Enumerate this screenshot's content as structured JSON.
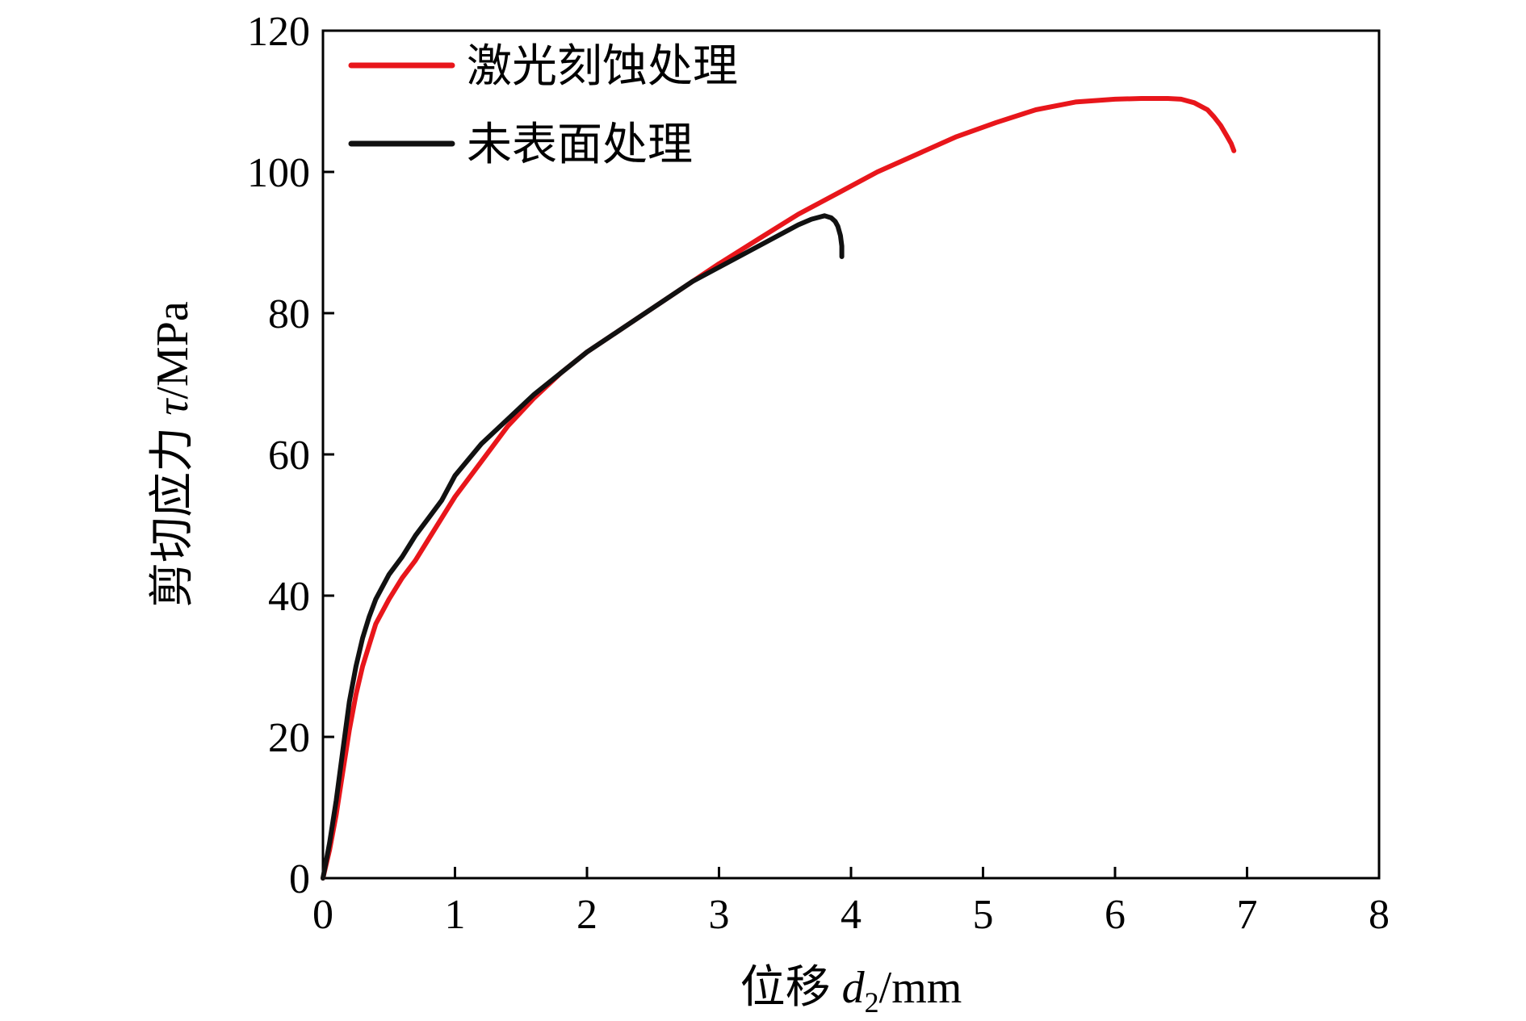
{
  "chart_data": {
    "type": "line",
    "xlabel": {
      "prefix": "位移 ",
      "var": "d",
      "sub": "2",
      "unit": "/mm"
    },
    "ylabel": {
      "prefix": "剪切应力 ",
      "var": "τ",
      "unit": "/MPa"
    },
    "xlim": [
      0,
      8
    ],
    "ylim": [
      0,
      120
    ],
    "xticks": [
      0,
      1,
      2,
      3,
      4,
      5,
      6,
      7,
      8
    ],
    "yticks": [
      0,
      20,
      40,
      60,
      80,
      100,
      120
    ],
    "grid": false,
    "legend_position": "top-left",
    "series": [
      {
        "name": "激光刻蚀处理",
        "color": "#e8161b",
        "x": [
          0,
          0.05,
          0.1,
          0.15,
          0.2,
          0.25,
          0.3,
          0.35,
          0.4,
          0.5,
          0.6,
          0.7,
          0.8,
          0.9,
          1.0,
          1.2,
          1.4,
          1.6,
          1.8,
          2.0,
          2.2,
          2.4,
          2.6,
          2.8,
          3.0,
          3.3,
          3.6,
          3.9,
          4.2,
          4.5,
          4.8,
          5.1,
          5.4,
          5.7,
          6.0,
          6.2,
          6.4,
          6.5,
          6.6,
          6.7,
          6.75,
          6.8,
          6.85,
          6.88,
          6.9
        ],
        "y": [
          0,
          4,
          9,
          15,
          21,
          26,
          30,
          33,
          36,
          39.5,
          42.5,
          45,
          48,
          51,
          54,
          59,
          64,
          68,
          71.5,
          74.5,
          77,
          79.5,
          82,
          84.5,
          87,
          90.5,
          94,
          97,
          100,
          102.5,
          105,
          107,
          108.8,
          109.9,
          110.3,
          110.4,
          110.4,
          110.3,
          109.8,
          108.8,
          107.8,
          106.6,
          105,
          104,
          103
        ]
      },
      {
        "name": "未表面处理",
        "color": "#111111",
        "x": [
          0,
          0.05,
          0.1,
          0.15,
          0.2,
          0.25,
          0.3,
          0.35,
          0.4,
          0.5,
          0.6,
          0.7,
          0.8,
          0.9,
          1.0,
          1.2,
          1.4,
          1.6,
          1.8,
          2.0,
          2.2,
          2.4,
          2.6,
          2.8,
          3.0,
          3.2,
          3.4,
          3.6,
          3.7,
          3.8,
          3.85,
          3.88,
          3.9,
          3.92,
          3.93,
          3.93,
          3.93
        ],
        "y": [
          0,
          5,
          11,
          18,
          25,
          30,
          34,
          37,
          39.5,
          43,
          45.5,
          48.5,
          51,
          53.5,
          57,
          61.5,
          65,
          68.5,
          71.5,
          74.5,
          77,
          79.5,
          82,
          84.5,
          86.5,
          88.5,
          90.5,
          92.5,
          93.3,
          93.8,
          93.5,
          93,
          92.3,
          91,
          89.5,
          88.5,
          88
        ]
      }
    ]
  }
}
